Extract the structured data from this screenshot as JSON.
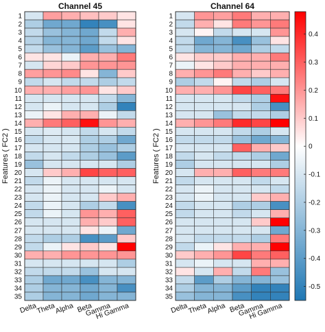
{
  "chart_data": {
    "type": "heatmap",
    "colorbar": {
      "ticks": [
        0.4,
        0.3,
        0.2,
        0.1,
        0,
        -0.1,
        -0.2,
        -0.3,
        -0.4,
        -0.5
      ],
      "tick_labels": [
        "0.4",
        "0.3",
        "0.2",
        "0.1",
        "0",
        "-0.1",
        "-0.2",
        "-0.3",
        "-0.4",
        "-0.5"
      ],
      "range": [
        -0.55,
        0.48
      ],
      "low_color": "#1f77b4",
      "mid_color": "#ffffff",
      "high_color": "#ff0000"
    },
    "ylabel": "Features ( FC2 )",
    "columns": [
      "Delta",
      "Theta",
      "Alpha",
      "Beta",
      "Gamma",
      "Hi Gamma"
    ],
    "rows": [
      "1",
      "2",
      "3",
      "4",
      "5",
      "6",
      "7",
      "8",
      "9",
      "10",
      "11",
      "12",
      "13",
      "14",
      "15",
      "16",
      "17",
      "18",
      "19",
      "20",
      "21",
      "22",
      "23",
      "24",
      "25",
      "26",
      "27",
      "28",
      "29",
      "30",
      "31",
      "32",
      "33",
      "34",
      "35"
    ],
    "panels": [
      {
        "title": "Channel 45",
        "ylabel": "Features ( FC2 )",
        "values": [
          [
            -0.1,
            0.18,
            0.15,
            0.12,
            0.1,
            0.05
          ],
          [
            -0.2,
            -0.35,
            -0.35,
            -0.5,
            -0.45,
            0.05
          ],
          [
            -0.15,
            -0.25,
            -0.3,
            -0.35,
            -0.15,
            0.15
          ],
          [
            -0.18,
            -0.3,
            -0.3,
            -0.35,
            -0.15,
            0.05
          ],
          [
            -0.15,
            -0.25,
            -0.3,
            -0.4,
            -0.25,
            -0.3
          ],
          [
            0.05,
            0.05,
            -0.05,
            0.15,
            0.15,
            0.25
          ],
          [
            -0.1,
            0.08,
            0.1,
            0.2,
            0.2,
            0.2
          ],
          [
            0.18,
            0.2,
            0.22,
            0.05,
            -0.3,
            0.1
          ],
          [
            -0.15,
            -0.1,
            -0.15,
            -0.15,
            -0.2,
            -0.15
          ],
          [
            0.15,
            0.15,
            0.18,
            0.2,
            0.05,
            0.1
          ],
          [
            -0.1,
            -0.1,
            -0.1,
            -0.1,
            -0.15,
            -0.3
          ],
          [
            -0.1,
            -0.05,
            -0.1,
            -0.1,
            -0.2,
            -0.5
          ],
          [
            -0.05,
            0.05,
            0.15,
            0.15,
            -0.05,
            -0.15
          ],
          [
            0.15,
            0.25,
            0.3,
            0.45,
            0.2,
            0.15
          ],
          [
            -0.1,
            -0.08,
            -0.1,
            -0.15,
            -0.1,
            -0.15
          ],
          [
            -0.15,
            -0.1,
            -0.1,
            -0.2,
            -0.2,
            -0.35
          ],
          [
            -0.1,
            -0.1,
            -0.1,
            -0.2,
            -0.25,
            -0.2
          ],
          [
            -0.15,
            -0.1,
            -0.15,
            -0.2,
            -0.25,
            -0.4
          ],
          [
            -0.25,
            -0.1,
            -0.1,
            -0.1,
            -0.1,
            -0.2
          ],
          [
            -0.1,
            0.1,
            0.15,
            0.35,
            0.3,
            0.3
          ],
          [
            -0.15,
            -0.05,
            -0.1,
            -0.1,
            -0.1,
            -0.1
          ],
          [
            -0.1,
            -0.05,
            -0.1,
            -0.1,
            -0.05,
            -0.1
          ],
          [
            -0.1,
            -0.05,
            -0.1,
            -0.1,
            0.1,
            0.15
          ],
          [
            -0.15,
            -0.05,
            -0.1,
            -0.2,
            -0.15,
            -0.45
          ],
          [
            -0.15,
            -0.05,
            -0.1,
            0.2,
            0.15,
            0.3
          ],
          [
            -0.1,
            -0.1,
            -0.1,
            0.15,
            0.1,
            0.3
          ],
          [
            -0.1,
            -0.1,
            -0.1,
            0.05,
            -0.05,
            -0.35
          ],
          [
            -0.15,
            -0.2,
            -0.2,
            -0.45,
            -0.4,
            0.1
          ],
          [
            -0.15,
            -0.05,
            0.05,
            0.1,
            0.05,
            0.48
          ],
          [
            0.15,
            0.15,
            0.2,
            0.2,
            0.2,
            0.2
          ],
          [
            -0.1,
            -0.1,
            -0.1,
            -0.1,
            -0.1,
            -0.2
          ],
          [
            -0.15,
            -0.15,
            -0.15,
            -0.25,
            -0.1,
            -0.1
          ],
          [
            -0.2,
            -0.35,
            -0.35,
            -0.45,
            -0.3,
            -0.3
          ],
          [
            -0.2,
            -0.3,
            -0.3,
            -0.35,
            -0.3,
            -0.45
          ],
          [
            -0.2,
            -0.3,
            -0.3,
            -0.35,
            -0.3,
            -0.3
          ]
        ]
      },
      {
        "title": "Channel 64",
        "ylabel": "Features ( FC2 )",
        "values": [
          [
            -0.1,
            0.2,
            0.18,
            0.25,
            0.15,
            0.15
          ],
          [
            -0.15,
            0.15,
            0.05,
            0.25,
            0.2,
            0.25
          ],
          [
            -0.1,
            0.02,
            -0.15,
            -0.1,
            -0.1,
            0.2
          ],
          [
            -0.15,
            -0.35,
            -0.3,
            -0.45,
            -0.25,
            0.05
          ],
          [
            -0.15,
            -0.3,
            -0.3,
            -0.35,
            -0.2,
            -0.15
          ],
          [
            0.05,
            0.1,
            0.1,
            0.15,
            0.15,
            0.25
          ],
          [
            -0.05,
            0.05,
            0.1,
            0.15,
            0.15,
            0.15
          ],
          [
            0.15,
            0.2,
            0.25,
            0.15,
            0.1,
            0.15
          ],
          [
            -0.2,
            -0.15,
            0.02,
            -0.15,
            -0.2,
            -0.1
          ],
          [
            0.15,
            0.15,
            0.2,
            0.35,
            0.3,
            0.25
          ],
          [
            -0.1,
            -0.1,
            -0.1,
            -0.15,
            -0.2,
            0.45
          ],
          [
            -0.1,
            -0.1,
            -0.1,
            -0.1,
            -0.2,
            -0.45
          ],
          [
            -0.1,
            -0.1,
            -0.25,
            -0.15,
            -0.15,
            -0.2
          ],
          [
            0.15,
            0.2,
            0.25,
            0.4,
            0.35,
            0.48
          ],
          [
            -0.1,
            -0.1,
            -0.1,
            -0.15,
            -0.2,
            -0.1
          ],
          [
            -0.15,
            -0.15,
            -0.15,
            -0.25,
            -0.35,
            -0.3
          ],
          [
            -0.1,
            -0.1,
            -0.1,
            0.3,
            0.15,
            0.1
          ],
          [
            -0.15,
            -0.1,
            -0.15,
            -0.15,
            -0.2,
            -0.35
          ],
          [
            -0.2,
            -0.1,
            -0.1,
            -0.1,
            -0.1,
            -0.2
          ],
          [
            -0.1,
            0.15,
            0.15,
            0.3,
            0.25,
            0.25
          ],
          [
            -0.15,
            -0.1,
            -0.1,
            -0.1,
            -0.15,
            -0.1
          ],
          [
            -0.1,
            -0.05,
            -0.1,
            -0.1,
            -0.1,
            -0.15
          ],
          [
            -0.1,
            -0.05,
            -0.1,
            -0.1,
            0.1,
            0.15
          ],
          [
            -0.15,
            -0.1,
            -0.1,
            -0.2,
            -0.2,
            -0.45
          ],
          [
            -0.15,
            -0.1,
            -0.1,
            -0.15,
            -0.1,
            0.15
          ],
          [
            -0.1,
            -0.1,
            -0.1,
            -0.1,
            0.1,
            0.48
          ],
          [
            -0.1,
            -0.1,
            -0.1,
            -0.1,
            -0.1,
            -0.35
          ],
          [
            -0.1,
            -0.15,
            -0.15,
            -0.15,
            -0.2,
            0.25
          ],
          [
            -0.15,
            -0.05,
            0.05,
            0.15,
            0.15,
            0.48
          ],
          [
            0.1,
            0.15,
            0.2,
            0.35,
            0.25,
            0.3
          ],
          [
            -0.1,
            -0.05,
            -0.1,
            -0.1,
            0.15,
            0.15
          ],
          [
            0.05,
            -0.1,
            0.15,
            -0.15,
            0.25,
            -0.25
          ],
          [
            -0.15,
            -0.4,
            -0.2,
            -0.3,
            -0.3,
            -0.25
          ],
          [
            -0.2,
            -0.3,
            -0.3,
            -0.4,
            -0.5,
            -0.5
          ],
          [
            -0.25,
            -0.3,
            -0.3,
            -0.45,
            -0.5,
            -0.5
          ]
        ]
      }
    ]
  }
}
